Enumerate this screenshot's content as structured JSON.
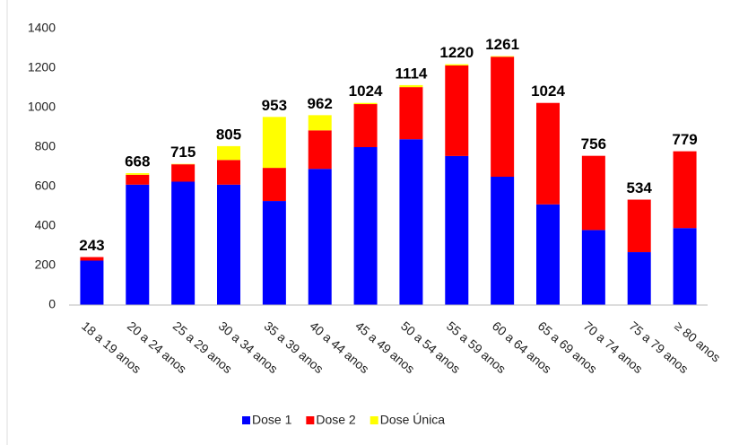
{
  "chart_data": {
    "type": "stacked_bar",
    "categories": [
      "18 a 19 anos",
      "20 a 24 anos",
      "25 a 29 anos",
      "30 a 34 anos",
      "35 a 39 anos",
      "40 a 44 anos",
      "45 a 49 anos",
      "50 a 54 anos",
      "55 a 59 anos",
      "60 a 64 anos",
      "65 a 69 anos",
      "70 a 74 anos",
      "75 a 79 anos",
      "≥ 80 anos"
    ],
    "series": [
      {
        "name": "Dose 1",
        "color": "#0000ff",
        "values": [
          225,
          610,
          625,
          610,
          527,
          690,
          800,
          840,
          755,
          650,
          510,
          380,
          268,
          390
        ]
      },
      {
        "name": "Dose 2",
        "color": "#ff0000",
        "values": [
          18,
          50,
          88,
          125,
          168,
          195,
          218,
          264,
          459,
          608,
          514,
          376,
          266,
          389
        ]
      },
      {
        "name": "Dose Única",
        "color": "#ffff00",
        "values": [
          0,
          8,
          2,
          70,
          258,
          77,
          6,
          10,
          6,
          3,
          0,
          0,
          0,
          0
        ]
      }
    ],
    "totals": [
      243,
      668,
      715,
      805,
      953,
      962,
      1024,
      1114,
      1220,
      1261,
      1024,
      756,
      534,
      779
    ],
    "ylim": [
      0,
      1400
    ],
    "yticks": [
      0,
      200,
      400,
      600,
      800,
      1000,
      1200,
      1400
    ],
    "grid": false,
    "legend": "bottom"
  }
}
